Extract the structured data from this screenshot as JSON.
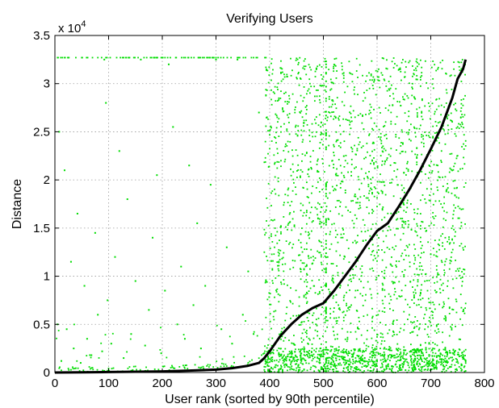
{
  "chart_data": {
    "type": "scatter",
    "title": "Verifying Users",
    "xlabel": "User rank (sorted by 90th percentile)",
    "ylabel": "Distance",
    "y_exponent_label": "x 10",
    "y_exponent": "4",
    "xlim": [
      0,
      800
    ],
    "ylim": [
      0,
      3.5
    ],
    "xticks": [
      0,
      100,
      200,
      300,
      400,
      500,
      600,
      700,
      800
    ],
    "yticks": [
      0,
      0.5,
      1,
      1.5,
      2,
      2.5,
      3,
      3.5
    ],
    "xtick_labels": [
      "0",
      "100",
      "200",
      "300",
      "400",
      "500",
      "600",
      "700",
      "800"
    ],
    "ytick_labels": [
      "0",
      "0.5",
      "1",
      "1.5",
      "2",
      "2.5",
      "3",
      "3.5"
    ],
    "grid": true,
    "colors": {
      "scatter": "#00dd00",
      "curve": "#000000"
    },
    "series": [
      {
        "kind": "line",
        "x": [
          0,
          50,
          100,
          150,
          200,
          250,
          300,
          330,
          360,
          380,
          390,
          400,
          410,
          420,
          440,
          460,
          480,
          500,
          520,
          540,
          560,
          580,
          600,
          620,
          640,
          660,
          680,
          700,
          720,
          740,
          750,
          760,
          765
        ],
        "y": [
          0,
          0.002,
          0.005,
          0.008,
          0.012,
          0.02,
          0.03,
          0.045,
          0.07,
          0.1,
          0.15,
          0.22,
          0.3,
          0.38,
          0.5,
          0.6,
          0.67,
          0.72,
          0.85,
          1.0,
          1.15,
          1.32,
          1.47,
          1.55,
          1.72,
          1.9,
          2.1,
          2.32,
          2.55,
          2.85,
          3.05,
          3.15,
          3.25
        ]
      },
      {
        "kind": "scatter",
        "x": [
          5,
          8,
          12,
          18,
          22,
          30,
          35,
          42,
          48,
          55,
          60,
          68,
          75,
          80,
          88,
          92,
          95,
          98,
          105,
          112,
          120,
          128,
          135,
          142,
          150,
          160,
          168,
          175,
          182,
          190,
          198,
          205,
          212,
          220,
          228,
          235,
          242,
          250,
          258,
          265,
          272,
          280,
          290,
          300,
          310,
          320,
          330,
          340,
          350,
          360,
          370,
          380,
          390
        ],
        "y": [
          0.5,
          2.5,
          0.12,
          2.1,
          0.45,
          1.15,
          0.25,
          1.65,
          0.1,
          0.9,
          0.35,
          0.18,
          1.45,
          0.6,
          0.22,
          3.25,
          2.8,
          0.75,
          0.3,
          1.2,
          2.3,
          0.15,
          1.8,
          0.4,
          0.95,
          3.25,
          0.28,
          0.65,
          1.4,
          2.05,
          0.2,
          0.85,
          3.2,
          2.55,
          0.5,
          1.1,
          0.35,
          2.15,
          0.7,
          1.55,
          0.25,
          0.9,
          1.95,
          3.25,
          0.45,
          1.3,
          0.3,
          3.25,
          0.6,
          1.05,
          0.4,
          2.7,
          0.2
        ]
      }
    ]
  }
}
